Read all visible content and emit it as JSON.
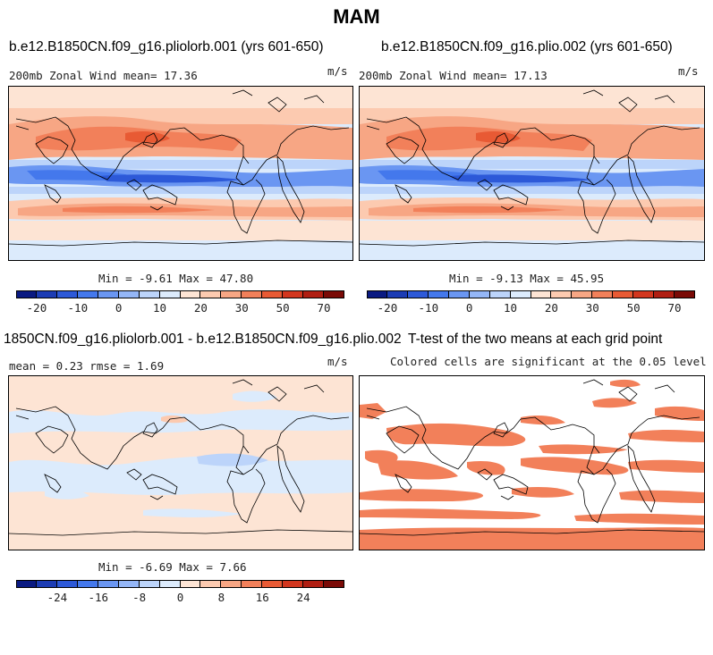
{
  "figure": {
    "season": "MAM"
  },
  "panels": {
    "top_left": {
      "title": "b.e12.B1850CN.f09_g16.pliolorb.001 (yrs 601-650)",
      "field_label": "200mb Zonal Wind  mean=  17.36",
      "units": "m/s",
      "minmax": "Min =  -9.61 Max =  47.80"
    },
    "top_right": {
      "title": "b.e12.B1850CN.f09_g16.plio.002 (yrs 601-650)",
      "field_label": "200mb Zonal Wind  mean=  17.13",
      "units": "m/s",
      "minmax": "Min =  -9.13 Max =  45.95"
    },
    "bottom_left": {
      "title": "1850CN.f09_g16.pliolorb.001 - b.e12.B1850CN.f09_g16.plio.002",
      "field_label": "mean =   0.23     rmse =   1.69",
      "units": "m/s",
      "minmax": "Min =  -6.69 Max =   7.66"
    },
    "bottom_right": {
      "title": "T-test of the two means at each grid point",
      "subtitle": "Colored cells are significant at the 0.05 level"
    }
  },
  "colorbars": {
    "wind": {
      "colors": [
        "#0a1a82",
        "#1c3cb4",
        "#2d59d8",
        "#4478ec",
        "#6a96f2",
        "#94b6f6",
        "#bcd4fa",
        "#dcebfc",
        "#fde4d4",
        "#fccab0",
        "#f7a684",
        "#f2805a",
        "#e85a34",
        "#d2361e",
        "#b01e12",
        "#7a0a06"
      ],
      "ticks": [
        "-20",
        "-10",
        "0",
        "10",
        "20",
        "30",
        "50",
        "70"
      ]
    },
    "diff": {
      "colors": [
        "#0a1a82",
        "#1c3cb4",
        "#2d59d8",
        "#4478ec",
        "#6a96f2",
        "#94b6f6",
        "#bcd4fa",
        "#dcebfc",
        "#fde4d4",
        "#fccab0",
        "#f7a684",
        "#f2805a",
        "#e85a34",
        "#d2361e",
        "#b01e12",
        "#7a0a06"
      ],
      "ticks": [
        "-24",
        "-16",
        "-8",
        "0",
        "8",
        "16",
        "24"
      ]
    }
  }
}
